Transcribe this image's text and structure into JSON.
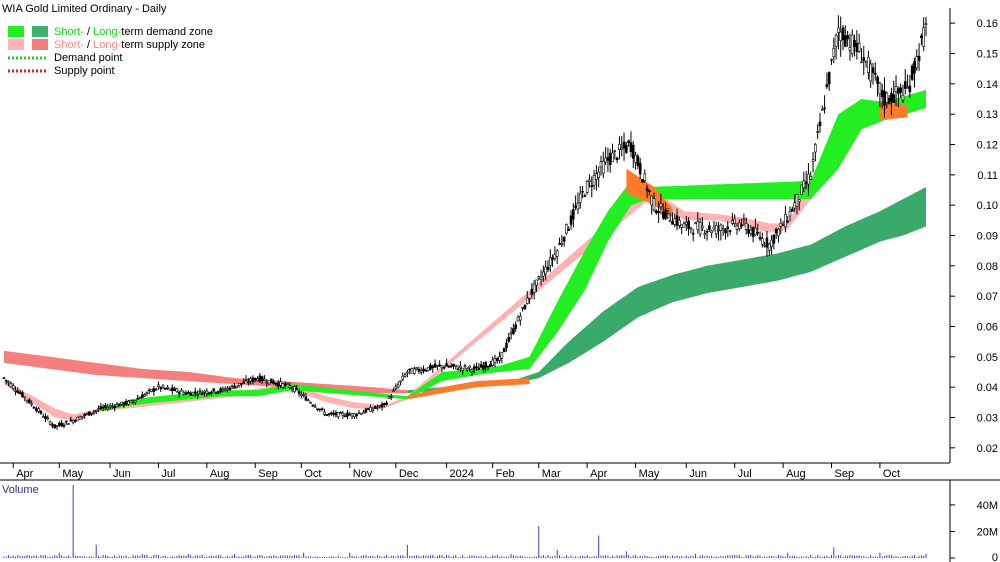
{
  "chart_data": {
    "type": "candlestick",
    "title": "WIA Gold Limited Ordinary - Daily",
    "legend": [
      {
        "text_short": "Short-",
        "text_sep": " / ",
        "text_long": "Long-",
        "text_rest": "term demand zone",
        "short_color": "#22ee22",
        "long_color": "#3cb371",
        "word_color": "#22cc22",
        "kind": "zone"
      },
      {
        "text_short": "Short-",
        "text_sep": " / ",
        "text_long": "Long-",
        "text_rest": "term supply zone",
        "short_color": "#ffb3b3",
        "long_color": "#f08080",
        "word_color": "#f28c8c",
        "kind": "zone"
      },
      {
        "text": "Demand point",
        "color": "#22cc22",
        "kind": "dotted"
      },
      {
        "text": "Supply point",
        "color": "#dd2222",
        "kind": "dotted"
      }
    ],
    "price_axis": {
      "ylim": [
        0.015,
        0.165
      ],
      "ticks": [
        "0.02",
        "0.03",
        "0.04",
        "0.05",
        "0.06",
        "0.07",
        "0.08",
        "0.09",
        "0.10",
        "0.11",
        "0.12",
        "0.13",
        "0.14",
        "0.15",
        "0.16"
      ]
    },
    "x_axis": {
      "tick_labels": [
        "Apr",
        "May",
        "Jun",
        "Jul",
        "Aug",
        "Sep",
        "Oct",
        "Nov",
        "Dec",
        "2024",
        "Feb",
        "Mar",
        "Apr",
        "May",
        "Jun",
        "Jul",
        "Aug",
        "Sep",
        "Oct"
      ],
      "tick_index": [
        4,
        24,
        46,
        67,
        88,
        109,
        129,
        150,
        170,
        192,
        212,
        232,
        253,
        274,
        296,
        317,
        338,
        359,
        380
      ]
    },
    "price_series": {
      "name": "Close",
      "start_index": 0,
      "end_index": 400,
      "keyframes": [
        [
          0,
          0.043
        ],
        [
          10,
          0.036
        ],
        [
          22,
          0.027
        ],
        [
          30,
          0.029
        ],
        [
          42,
          0.033
        ],
        [
          55,
          0.035
        ],
        [
          67,
          0.04
        ],
        [
          80,
          0.038
        ],
        [
          95,
          0.039
        ],
        [
          110,
          0.043
        ],
        [
          125,
          0.04
        ],
        [
          140,
          0.031
        ],
        [
          152,
          0.031
        ],
        [
          165,
          0.034
        ],
        [
          175,
          0.045
        ],
        [
          190,
          0.047
        ],
        [
          205,
          0.046
        ],
        [
          215,
          0.049
        ],
        [
          228,
          0.07
        ],
        [
          240,
          0.085
        ],
        [
          252,
          0.105
        ],
        [
          262,
          0.115
        ],
        [
          272,
          0.12
        ],
        [
          282,
          0.1
        ],
        [
          295,
          0.093
        ],
        [
          310,
          0.092
        ],
        [
          320,
          0.094
        ],
        [
          332,
          0.087
        ],
        [
          340,
          0.096
        ],
        [
          350,
          0.11
        ],
        [
          362,
          0.158
        ],
        [
          372,
          0.15
        ],
        [
          382,
          0.135
        ],
        [
          392,
          0.138
        ],
        [
          400,
          0.158
        ]
      ]
    },
    "short_demand_zone": [
      [
        42,
        0.033,
        0.032
      ],
      [
        55,
        0.036,
        0.034
      ],
      [
        67,
        0.037,
        0.035
      ],
      [
        80,
        0.038,
        0.036
      ],
      [
        95,
        0.039,
        0.037
      ],
      [
        110,
        0.039,
        0.037
      ],
      [
        125,
        0.041,
        0.039
      ],
      [
        175,
        0.037,
        0.036
      ],
      [
        190,
        0.045,
        0.042
      ],
      [
        205,
        0.046,
        0.044
      ],
      [
        215,
        0.047,
        0.045
      ],
      [
        228,
        0.05,
        0.046
      ],
      [
        240,
        0.068,
        0.058
      ],
      [
        252,
        0.085,
        0.072
      ],
      [
        262,
        0.098,
        0.088
      ],
      [
        272,
        0.108,
        0.1
      ],
      [
        280,
        0.106,
        0.102
      ],
      [
        350,
        0.108,
        0.102
      ],
      [
        362,
        0.13,
        0.112
      ],
      [
        372,
        0.135,
        0.125
      ],
      [
        382,
        0.134,
        0.128
      ],
      [
        400,
        0.138,
        0.132
      ]
    ],
    "short_supply_zone": [
      [
        0,
        0.042,
        0.041
      ],
      [
        10,
        0.038,
        0.036
      ],
      [
        22,
        0.033,
        0.03
      ],
      [
        30,
        0.031,
        0.029
      ],
      [
        42,
        0.033,
        0.032
      ],
      [
        125,
        0.041,
        0.039
      ],
      [
        140,
        0.037,
        0.035
      ],
      [
        152,
        0.035,
        0.033
      ],
      [
        165,
        0.034,
        0.033
      ],
      [
        175,
        0.037,
        0.036
      ],
      [
        280,
        0.106,
        0.102
      ],
      [
        295,
        0.098,
        0.095
      ],
      [
        310,
        0.097,
        0.095
      ],
      [
        320,
        0.096,
        0.093
      ],
      [
        332,
        0.094,
        0.091
      ],
      [
        340,
        0.094,
        0.092
      ],
      [
        350,
        0.108,
        0.102
      ]
    ],
    "long_supply_zone": [
      [
        0,
        0.052,
        0.048
      ],
      [
        20,
        0.05,
        0.046
      ],
      [
        40,
        0.048,
        0.044
      ],
      [
        60,
        0.046,
        0.043
      ],
      [
        80,
        0.045,
        0.042
      ],
      [
        100,
        0.043,
        0.041
      ],
      [
        120,
        0.042,
        0.04
      ],
      [
        140,
        0.041,
        0.039
      ],
      [
        160,
        0.04,
        0.038
      ],
      [
        175,
        0.039,
        0.038
      ]
    ],
    "long_demand_zone": [
      [
        175,
        0.039,
        0.038
      ],
      [
        190,
        0.04,
        0.039
      ],
      [
        205,
        0.041,
        0.04
      ],
      [
        220,
        0.042,
        0.041
      ],
      [
        232,
        0.045,
        0.043
      ],
      [
        245,
        0.055,
        0.048
      ],
      [
        260,
        0.065,
        0.055
      ],
      [
        275,
        0.073,
        0.063
      ],
      [
        290,
        0.077,
        0.068
      ],
      [
        305,
        0.08,
        0.071
      ],
      [
        320,
        0.082,
        0.073
      ],
      [
        335,
        0.084,
        0.075
      ],
      [
        350,
        0.087,
        0.078
      ],
      [
        365,
        0.093,
        0.083
      ],
      [
        380,
        0.098,
        0.088
      ],
      [
        390,
        0.102,
        0.09
      ],
      [
        400,
        0.106,
        0.093
      ]
    ],
    "volume": {
      "label": "Volume",
      "ylim": [
        0,
        55
      ],
      "ticks": [
        "0",
        "20M",
        "40M"
      ],
      "tick_values": [
        0,
        20,
        40
      ],
      "unit": "M",
      "spikes": [
        [
          24,
          4
        ],
        [
          30,
          55
        ],
        [
          40,
          10
        ],
        [
          60,
          3
        ],
        [
          80,
          3
        ],
        [
          100,
          3
        ],
        [
          130,
          4
        ],
        [
          150,
          4
        ],
        [
          175,
          10
        ],
        [
          220,
          3
        ],
        [
          232,
          24
        ],
        [
          240,
          6
        ],
        [
          258,
          17
        ],
        [
          270,
          5
        ],
        [
          300,
          3
        ],
        [
          340,
          4
        ],
        [
          360,
          8
        ],
        [
          380,
          4
        ],
        [
          400,
          3
        ]
      ],
      "baseline": 1.5
    }
  }
}
